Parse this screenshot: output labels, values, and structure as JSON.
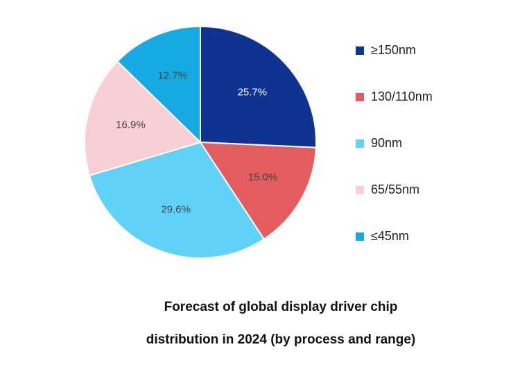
{
  "chart_data": {
    "type": "pie",
    "title": [
      "Forecast of global display driver chip",
      "distribution in 2024 (by process and range)"
    ],
    "categories": [
      "≥150nm",
      "130/110nm",
      "90nm",
      "65/55nm",
      "≤45nm"
    ],
    "values": [
      25.7,
      15.0,
      29.6,
      16.9,
      12.7
    ],
    "value_labels": [
      "25.7%",
      "15.0%",
      "29.6%",
      "16.9%",
      "12.7%"
    ],
    "colors": [
      "#0f3391",
      "#e35d5f",
      "#60d2f7",
      "#f7cfd4",
      "#17a9e1"
    ],
    "legend": "right"
  }
}
